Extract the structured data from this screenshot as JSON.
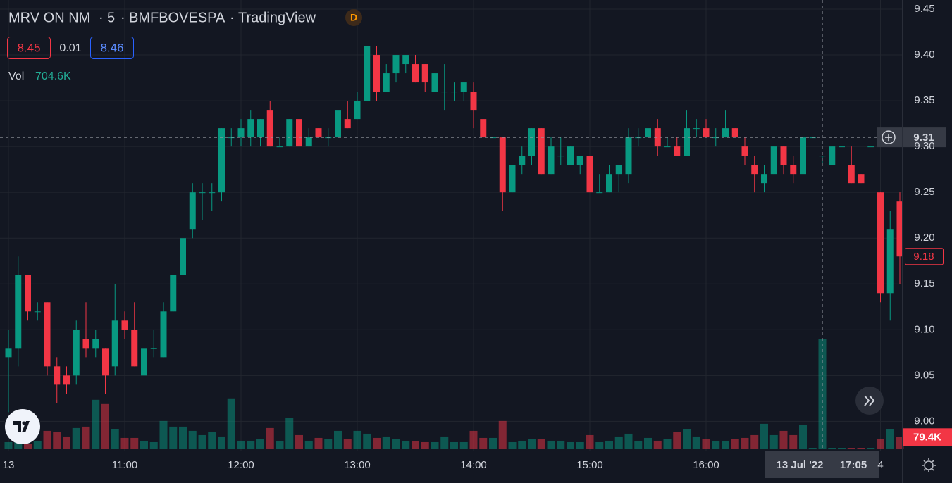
{
  "header": {
    "symbol": "MRV ON NM",
    "interval": "5",
    "exchange": "BMFBOVESPA",
    "source": "TradingView",
    "badge": "D",
    "bid": 8.45,
    "spread": 0.01,
    "ask": 8.46
  },
  "chart_data": {
    "type": "candlestick",
    "categories": [
      "13",
      null,
      null,
      null,
      null,
      null,
      null,
      null,
      null,
      null,
      null,
      null,
      "11:00",
      null,
      null,
      null,
      null,
      null,
      null,
      null,
      null,
      null,
      null,
      null,
      "12:00",
      null,
      null,
      null,
      null,
      null,
      null,
      null,
      null,
      null,
      null,
      null,
      "13:00",
      null,
      null,
      null,
      null,
      null,
      null,
      null,
      null,
      null,
      null,
      null,
      "14:00",
      null,
      null,
      null,
      null,
      null,
      null,
      null,
      null,
      null,
      null,
      null,
      "15:00",
      null,
      null,
      null,
      null,
      null,
      null,
      null,
      null,
      null,
      null,
      null,
      "16:00",
      null,
      null,
      null,
      null,
      null,
      null,
      null,
      null,
      null,
      null,
      null,
      "17:05",
      null,
      null,
      null,
      null,
      null,
      "4",
      null,
      null
    ],
    "open": [
      9.07,
      9.08,
      9.16,
      9.12,
      9.13,
      9.06,
      9.05,
      9.05,
      9.09,
      9.08,
      9.08,
      9.06,
      9.11,
      9.1,
      9.05,
      9.08,
      9.07,
      9.12,
      9.16,
      9.21,
      9.25,
      9.25,
      9.25,
      9.31,
      9.31,
      9.31,
      9.31,
      9.34,
      9.3,
      9.3,
      9.33,
      9.3,
      9.32,
      9.31,
      9.31,
      9.33,
      9.33,
      9.35,
      9.4,
      9.36,
      9.38,
      9.39,
      9.39,
      9.39,
      9.36,
      9.36,
      9.36,
      9.36,
      9.36,
      9.33,
      9.31,
      9.31,
      9.25,
      9.28,
      9.29,
      9.32,
      9.27,
      9.29,
      9.28,
      9.28,
      9.29,
      9.25,
      9.25,
      9.27,
      9.27,
      9.31,
      9.31,
      9.32,
      9.3,
      9.3,
      9.29,
      9.32,
      9.32,
      9.31,
      9.31,
      9.32,
      9.3,
      9.28,
      9.26,
      9.27,
      9.3,
      9.28,
      9.27,
      9.31,
      9.29,
      9.28,
      9.3,
      9.28,
      9.27,
      9.3,
      9.25,
      9.14,
      9.24
    ],
    "high": [
      9.1,
      9.18,
      9.16,
      9.13,
      9.13,
      9.07,
      9.06,
      9.11,
      9.13,
      9.1,
      9.08,
      9.15,
      9.12,
      9.13,
      9.1,
      9.1,
      9.13,
      9.16,
      9.21,
      9.26,
      9.26,
      9.26,
      9.32,
      9.32,
      9.33,
      9.34,
      9.33,
      9.35,
      9.31,
      9.33,
      9.34,
      9.32,
      9.32,
      9.32,
      9.35,
      9.35,
      9.36,
      9.41,
      9.41,
      9.39,
      9.4,
      9.4,
      9.4,
      9.39,
      9.38,
      9.39,
      9.37,
      9.37,
      9.37,
      9.33,
      9.31,
      9.31,
      9.28,
      9.3,
      9.32,
      9.32,
      9.31,
      9.31,
      9.3,
      9.29,
      9.29,
      9.27,
      9.28,
      9.28,
      9.32,
      9.32,
      9.32,
      9.33,
      9.31,
      9.31,
      9.34,
      9.33,
      9.33,
      9.32,
      9.34,
      9.32,
      9.31,
      9.29,
      9.28,
      9.3,
      9.3,
      9.29,
      9.31,
      9.31,
      9.29,
      9.3,
      9.3,
      9.3,
      9.27,
      9.3,
      9.25,
      9.23,
      9.25
    ],
    "low": [
      9.01,
      9.06,
      9.11,
      9.11,
      9.05,
      9.02,
      9.03,
      9.04,
      9.07,
      9.07,
      9.03,
      9.05,
      9.09,
      9.06,
      9.05,
      9.07,
      9.07,
      9.12,
      9.16,
      9.2,
      9.22,
      9.23,
      9.24,
      9.3,
      9.3,
      9.3,
      9.3,
      9.3,
      9.3,
      9.3,
      9.3,
      9.3,
      9.31,
      9.3,
      9.31,
      9.32,
      9.33,
      9.35,
      9.35,
      9.36,
      9.37,
      9.38,
      9.37,
      9.36,
      9.36,
      9.34,
      9.35,
      9.35,
      9.32,
      9.31,
      9.3,
      9.23,
      9.25,
      9.27,
      9.28,
      9.27,
      9.27,
      9.28,
      9.28,
      9.27,
      9.25,
      9.25,
      9.25,
      9.25,
      9.26,
      9.3,
      9.31,
      9.29,
      9.3,
      9.29,
      9.29,
      9.31,
      9.31,
      9.3,
      9.31,
      9.31,
      9.28,
      9.25,
      9.25,
      9.27,
      9.27,
      9.26,
      9.26,
      9.31,
      9.28,
      9.28,
      9.3,
      9.26,
      9.26,
      9.3,
      9.13,
      9.11,
      9.15
    ],
    "close": [
      9.08,
      9.16,
      9.12,
      9.12,
      9.06,
      9.04,
      9.04,
      9.1,
      9.08,
      9.09,
      9.05,
      9.11,
      9.1,
      9.06,
      9.08,
      9.08,
      9.12,
      9.16,
      9.2,
      9.25,
      9.25,
      9.25,
      9.32,
      9.31,
      9.32,
      9.33,
      9.33,
      9.3,
      9.3,
      9.33,
      9.3,
      9.31,
      9.31,
      9.31,
      9.34,
      9.32,
      9.35,
      9.41,
      9.36,
      9.38,
      9.4,
      9.4,
      9.37,
      9.37,
      9.38,
      9.36,
      9.36,
      9.37,
      9.34,
      9.31,
      9.31,
      9.25,
      9.28,
      9.29,
      9.32,
      9.27,
      9.3,
      9.29,
      9.3,
      9.29,
      9.25,
      9.25,
      9.27,
      9.28,
      9.31,
      9.31,
      9.32,
      9.3,
      9.3,
      9.29,
      9.32,
      9.32,
      9.31,
      9.31,
      9.32,
      9.31,
      9.29,
      9.27,
      9.27,
      9.3,
      9.28,
      9.27,
      9.31,
      9.31,
      9.29,
      9.3,
      9.3,
      9.26,
      9.26,
      9.3,
      9.14,
      9.21,
      9.18
    ],
    "volume": {
      "name": "Vol",
      "values": [
        45000,
        54000,
        36000,
        54000,
        117000,
        108000,
        81000,
        135000,
        144000,
        315000,
        288000,
        126000,
        72000,
        72000,
        54000,
        45000,
        180000,
        144000,
        144000,
        117000,
        90000,
        108000,
        81000,
        324000,
        54000,
        54000,
        63000,
        135000,
        54000,
        198000,
        90000,
        54000,
        72000,
        63000,
        117000,
        63000,
        117000,
        99000,
        72000,
        81000,
        63000,
        54000,
        54000,
        45000,
        45000,
        81000,
        45000,
        45000,
        117000,
        72000,
        72000,
        180000,
        45000,
        54000,
        63000,
        63000,
        54000,
        54000,
        45000,
        45000,
        90000,
        45000,
        54000,
        81000,
        99000,
        54000,
        72000,
        54000,
        63000,
        108000,
        126000,
        81000,
        63000,
        54000,
        54000,
        63000,
        72000,
        90000,
        162000,
        90000,
        117000,
        90000,
        153000,
        9000,
        704600,
        9000,
        9000,
        9000,
        9000,
        9000,
        63000,
        126000,
        79400
      ],
      "value_labels": [
        null,
        null,
        null,
        null,
        null,
        null,
        null,
        null,
        null,
        null,
        null,
        null,
        null,
        null,
        null,
        null,
        null,
        null,
        null,
        null,
        null,
        null,
        null,
        null,
        null,
        null,
        null,
        null,
        null,
        null,
        null,
        null,
        null,
        null,
        null,
        null,
        null,
        null,
        null,
        null,
        null,
        null,
        null,
        null,
        null,
        null,
        null,
        null,
        null,
        null,
        null,
        null,
        null,
        null,
        null,
        null,
        null,
        null,
        null,
        null,
        null,
        null,
        null,
        null,
        null,
        null,
        null,
        null,
        null,
        null,
        null,
        null,
        null,
        null,
        null,
        null,
        null,
        null,
        null,
        null,
        null,
        null,
        null,
        null,
        "704.6K",
        null,
        null,
        null,
        null,
        null,
        null,
        null,
        "79.4K"
      ]
    },
    "up_color": "#089981",
    "down_color": "#f23645",
    "ylim": [
      8.968,
      9.46
    ],
    "yticks": [
      {
        "value": 9.0,
        "label": "9.00"
      },
      9.05,
      {
        "value": 9.1,
        "label": "9.10"
      },
      9.15,
      {
        "value": 9.2,
        "label": "9.20"
      },
      9.25,
      {
        "value": 9.3,
        "label": "9.30"
      },
      9.35,
      {
        "value": 9.4,
        "label": "9.40"
      },
      9.45
    ],
    "grid": true,
    "crosshair": {
      "index": 84,
      "date": "13 Jul '22",
      "price": 9.31
    }
  }
}
